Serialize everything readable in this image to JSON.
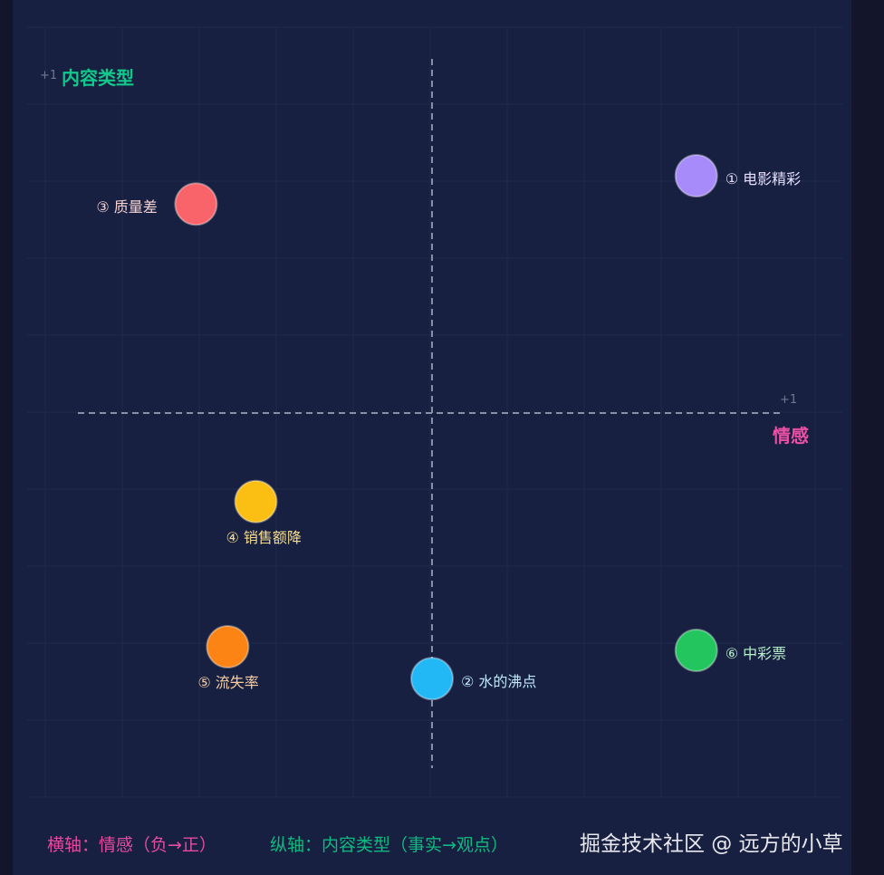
{
  "chart_data": {
    "type": "scatter",
    "xlim": [
      -1,
      1
    ],
    "ylim": [
      -1,
      1
    ],
    "grid": true,
    "x_axis_label": "情感",
    "y_axis_label": "内容类型",
    "x_tick": "+1",
    "y_tick": "+1",
    "points": [
      {
        "label": "① 电影精彩",
        "x": 0.75,
        "y": 0.67,
        "color": "#a78bfa",
        "text_color": "#e6defc",
        "label_pos": "right"
      },
      {
        "label": "② 水的沸点",
        "x": 0.0,
        "y": -0.75,
        "color": "#22b8f5",
        "text_color": "#bfe6fb",
        "label_pos": "right"
      },
      {
        "label": "③ 质量差",
        "x": -0.67,
        "y": 0.59,
        "color": "#f8646a",
        "text_color": "#f5d3d5",
        "label_pos": "left"
      },
      {
        "label": "④ 销售额降",
        "x": -0.5,
        "y": -0.25,
        "color": "#fbbf14",
        "text_color": "#f5dc90",
        "label_pos": "below"
      },
      {
        "label": "⑤ 流失率",
        "x": -0.58,
        "y": -0.66,
        "color": "#fb8414",
        "text_color": "#f8cda0",
        "label_pos": "below"
      },
      {
        "label": "⑥ 中彩票",
        "x": 0.75,
        "y": -0.67,
        "color": "#22c55e",
        "text_color": "#b8efcb",
        "label_pos": "right"
      }
    ]
  },
  "legend": {
    "x_axis": "横轴：情感（负→正）",
    "y_axis": "纵轴：内容类型（事实→观点）",
    "x_color": "#e64aa0",
    "y_color": "#10b981"
  },
  "watermark": "掘金技术社区 @ 远方的小草"
}
